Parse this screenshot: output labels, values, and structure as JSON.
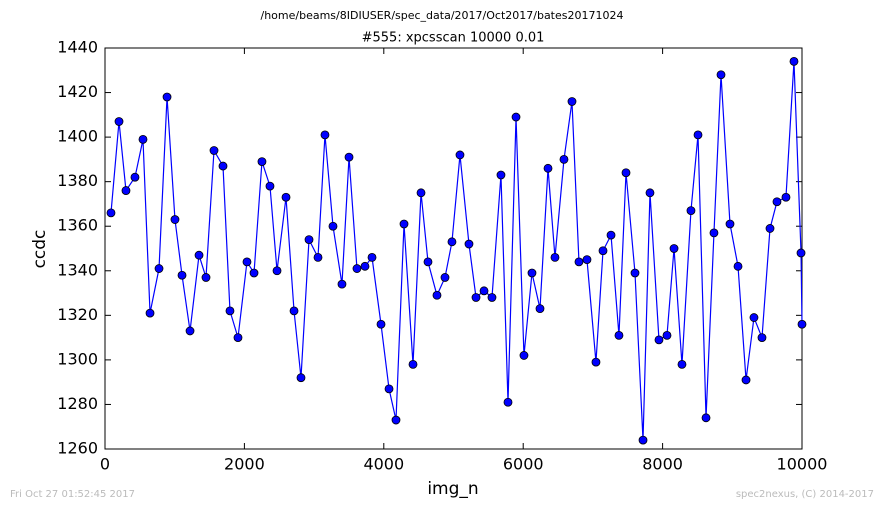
{
  "chart_data": {
    "type": "line",
    "suptitle": "/home/beams/8IDIUSER/spec_data/2017/Oct2017/bates20171024",
    "title": "#555: xpcsscan 10000 0.01",
    "x_label": "img_n",
    "y_label": "ccdc",
    "footer_left": "Fri Oct 27 01:52:45 2017",
    "footer_right": "spec2nexus, (C) 2014-2017",
    "color": "#0000ff",
    "x": [
      86,
      201,
      301,
      430,
      545,
      646,
      775,
      890,
      1004,
      1105,
      1220,
      1349,
      1449,
      1564,
      1693,
      1793,
      1908,
      2037,
      2138,
      2252,
      2367,
      2468,
      2597,
      2712,
      2812,
      2927,
      3056,
      3156,
      3271,
      3400,
      3501,
      3615,
      3730,
      3831,
      3960,
      4075,
      4175,
      4290,
      4419,
      4534,
      4634,
      4763,
      4878,
      4978,
      5093,
      5222,
      5323,
      5438,
      5552,
      5681,
      5782,
      5897,
      6011,
      6126,
      6241,
      6356,
      6456,
      6585,
      6700,
      6800,
      6915,
      7044,
      7145,
      7260,
      7374,
      7475,
      7604,
      7719,
      7819,
      7948,
      8063,
      8164,
      8278,
      8407,
      8508,
      8623,
      8737,
      8838,
      8967,
      9082,
      9197,
      9311,
      9426,
      9541,
      9641,
      9770,
      9885,
      9986,
      10000
    ],
    "values": [
      1366,
      1407,
      1376,
      1382,
      1399,
      1321,
      1341,
      1418,
      1363,
      1338,
      1313,
      1347,
      1337,
      1394,
      1387,
      1322,
      1310,
      1344,
      1339,
      1389,
      1378,
      1340,
      1373,
      1322,
      1292,
      1354,
      1346,
      1401,
      1360,
      1334,
      1391,
      1341,
      1342,
      1346,
      1316,
      1287,
      1273,
      1361,
      1298,
      1375,
      1344,
      1329,
      1337,
      1353,
      1392,
      1352,
      1328,
      1331,
      1328,
      1383,
      1281,
      1409,
      1302,
      1339,
      1323,
      1386,
      1346,
      1390,
      1416,
      1344,
      1345,
      1299,
      1349,
      1356,
      1311,
      1384,
      1339,
      1264,
      1375,
      1309,
      1311,
      1350,
      1298,
      1367,
      1401,
      1274,
      1357,
      1428,
      1361,
      1342,
      1291,
      1319,
      1310,
      1359,
      1371,
      1373,
      1434,
      1348,
      1316
    ],
    "xlim": [
      0,
      10000
    ],
    "xticks": [
      0,
      2000,
      4000,
      6000,
      8000,
      10000
    ],
    "ylim": [
      1260,
      1440
    ],
    "yticks": [
      1260,
      1280,
      1300,
      1320,
      1340,
      1360,
      1380,
      1400,
      1420,
      1440
    ]
  }
}
